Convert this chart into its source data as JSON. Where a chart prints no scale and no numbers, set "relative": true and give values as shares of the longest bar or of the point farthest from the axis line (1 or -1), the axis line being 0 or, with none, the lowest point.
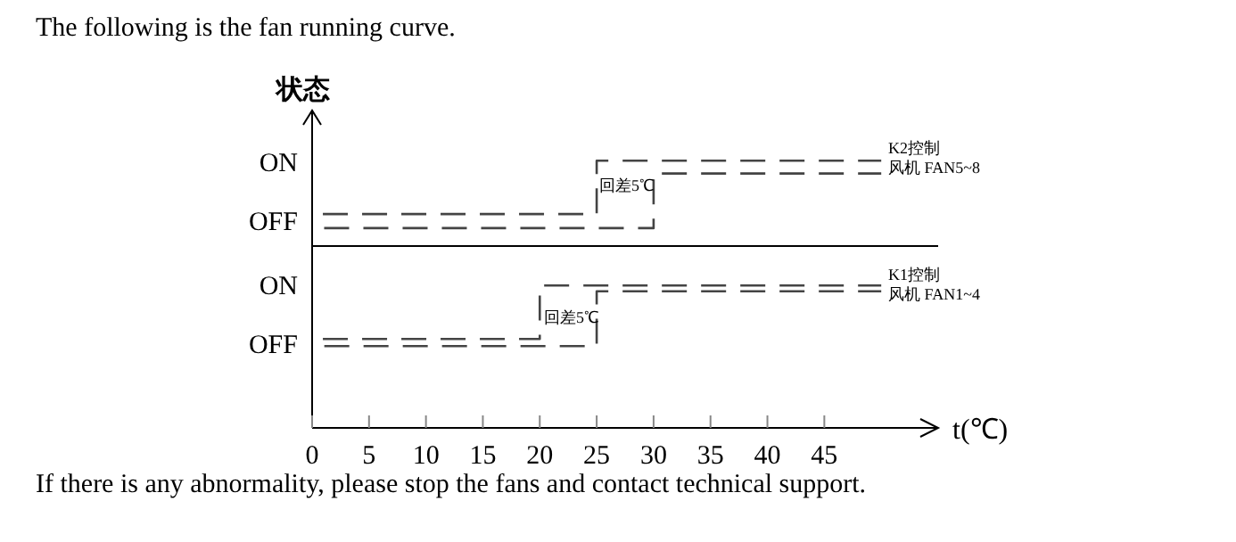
{
  "chart_data": [
    {
      "type": "line",
      "title": "The following is the fan running curve.",
      "ylabel": "状态",
      "relative": true,
      "xlim": [
        0,
        55
      ],
      "tick_labels": false,
      "line_style": "dashed",
      "series": [
        {
          "color": "#444444",
          "x": [
            0,
            25,
            25,
            50
          ],
          "values": [
            0.375,
            0.375,
            1.0,
            1.0
          ]
        },
        {
          "color": "#444444",
          "x": [
            0,
            30,
            30,
            50
          ],
          "values": [
            0.21,
            0.21,
            0.85,
            0.85
          ]
        }
      ],
      "annotations": [
        "ON",
        "OFF",
        "回差5℃",
        "K2控制",
        "风机 FAN5~8"
      ]
    },
    {
      "type": "line",
      "xlabel": "t(℃)",
      "relative": true,
      "xlim": [
        0,
        55
      ],
      "xticks": [
        0,
        5,
        10,
        15,
        20,
        25,
        30,
        35,
        40,
        45
      ],
      "tick_labels": "x",
      "line_style": "dashed",
      "series": [
        {
          "color": "#444444",
          "x": [
            0,
            20,
            20,
            50
          ],
          "values": [
            0.625,
            0.625,
            1.0,
            1.0
          ]
        },
        {
          "color": "#444444",
          "x": [
            0,
            25,
            25,
            50
          ],
          "values": [
            0.575,
            0.575,
            0.96,
            0.96
          ]
        }
      ],
      "annotations": [
        "ON",
        "OFF",
        "回差5℃",
        "K1控制",
        "风机 FAN1~4",
        "If there is any abnormality, please stop the fans and contact technical support."
      ]
    }
  ]
}
